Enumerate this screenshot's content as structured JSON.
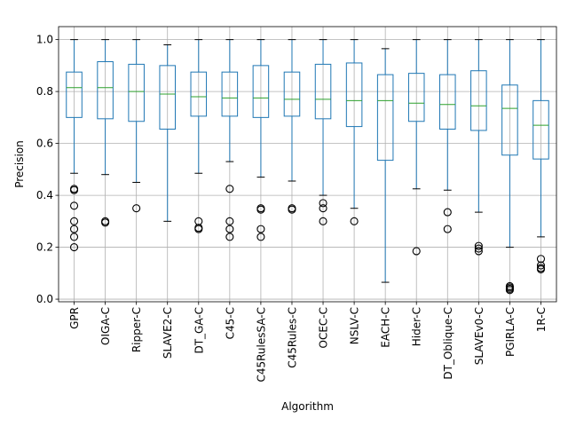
{
  "chart_data": {
    "type": "boxplot",
    "xlabel": "Algorithm",
    "ylabel": "Precision",
    "ylim": [
      -0.01,
      1.05
    ],
    "yticks": [
      "0.0",
      "0.2",
      "0.4",
      "0.6",
      "0.8",
      "1.0"
    ],
    "grid": true,
    "colors": {
      "box": "#1f77b4",
      "median": "#2ca02c",
      "grid": "#b0b0b0",
      "axis": "#000000"
    },
    "categories": [
      "GPR",
      "OIGA-C",
      "Ripper-C",
      "SLAVE2-C",
      "DT_GA-C",
      "C45-C",
      "C45RulesSA-C",
      "C45Rules-C",
      "OCEC-C",
      "NSLV-C",
      "EACH-C",
      "Hider-C",
      "DT_Oblique-C",
      "SLAVEv0-C",
      "PGIRLA-C",
      "1R-C"
    ],
    "boxes": [
      {
        "label": "GPR",
        "whislo": 0.485,
        "q1": 0.7,
        "median": 0.815,
        "q3": 0.875,
        "whishi": 1.0,
        "fliers": [
          0.425,
          0.42,
          0.36,
          0.3,
          0.27,
          0.24,
          0.2
        ]
      },
      {
        "label": "OIGA-C",
        "whislo": 0.48,
        "q1": 0.695,
        "median": 0.815,
        "q3": 0.915,
        "whishi": 1.0,
        "fliers": [
          0.3,
          0.295
        ]
      },
      {
        "label": "Ripper-C",
        "whislo": 0.45,
        "q1": 0.685,
        "median": 0.8,
        "q3": 0.905,
        "whishi": 1.0,
        "fliers": [
          0.35
        ]
      },
      {
        "label": "SLAVE2-C",
        "whislo": 0.3,
        "q1": 0.655,
        "median": 0.79,
        "q3": 0.9,
        "whishi": 0.98,
        "fliers": []
      },
      {
        "label": "DT_GA-C",
        "whislo": 0.485,
        "q1": 0.705,
        "median": 0.78,
        "q3": 0.875,
        "whishi": 1.0,
        "fliers": [
          0.3,
          0.275,
          0.27
        ]
      },
      {
        "label": "C45-C",
        "whislo": 0.53,
        "q1": 0.705,
        "median": 0.775,
        "q3": 0.875,
        "whishi": 1.0,
        "fliers": [
          0.425,
          0.3,
          0.27,
          0.24
        ]
      },
      {
        "label": "C45RulesSA-C",
        "whislo": 0.47,
        "q1": 0.7,
        "median": 0.775,
        "q3": 0.9,
        "whishi": 1.0,
        "fliers": [
          0.35,
          0.345,
          0.27,
          0.24
        ]
      },
      {
        "label": "C45Rules-C",
        "whislo": 0.455,
        "q1": 0.705,
        "median": 0.77,
        "q3": 0.875,
        "whishi": 1.0,
        "fliers": [
          0.35,
          0.345
        ]
      },
      {
        "label": "OCEC-C",
        "whislo": 0.4,
        "q1": 0.695,
        "median": 0.77,
        "q3": 0.905,
        "whishi": 1.0,
        "fliers": [
          0.37,
          0.35,
          0.3
        ]
      },
      {
        "label": "NSLV-C",
        "whislo": 0.35,
        "q1": 0.665,
        "median": 0.765,
        "q3": 0.91,
        "whishi": 1.0,
        "fliers": [
          0.3
        ]
      },
      {
        "label": "EACH-C",
        "whislo": 0.065,
        "q1": 0.535,
        "median": 0.765,
        "q3": 0.865,
        "whishi": 0.965,
        "fliers": []
      },
      {
        "label": "Hider-C",
        "whislo": 0.425,
        "q1": 0.685,
        "median": 0.755,
        "q3": 0.87,
        "whishi": 1.0,
        "fliers": [
          0.185
        ]
      },
      {
        "label": "DT_Oblique-C",
        "whislo": 0.42,
        "q1": 0.655,
        "median": 0.75,
        "q3": 0.865,
        "whishi": 1.0,
        "fliers": [
          0.335,
          0.27
        ]
      },
      {
        "label": "SLAVEv0-C",
        "whislo": 0.335,
        "q1": 0.65,
        "median": 0.745,
        "q3": 0.88,
        "whishi": 1.0,
        "fliers": [
          0.205,
          0.195,
          0.185
        ]
      },
      {
        "label": "PGIRLA-C",
        "whislo": 0.2,
        "q1": 0.555,
        "median": 0.735,
        "q3": 0.825,
        "whishi": 1.0,
        "fliers": [
          0.05,
          0.045,
          0.04,
          0.035
        ]
      },
      {
        "label": "1R-C",
        "whislo": 0.24,
        "q1": 0.54,
        "median": 0.67,
        "q3": 0.765,
        "whishi": 1.0,
        "fliers": [
          0.155,
          0.13,
          0.12,
          0.115
        ]
      }
    ]
  }
}
